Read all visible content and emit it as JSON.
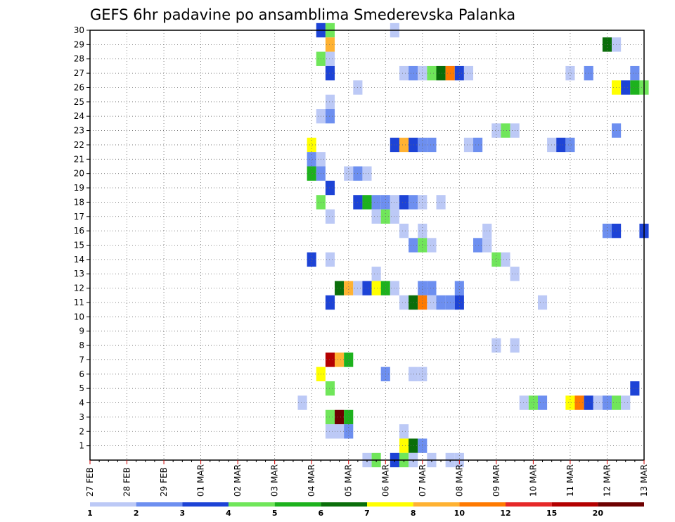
{
  "chart_data": {
    "type": "heatmap",
    "title": "GEFS 6hr padavine po ansamblima Smederevska Palanka",
    "xlabel": "",
    "ylabel": "",
    "x_tick_labels": [
      "27 FEB",
      "28 FEB",
      "29 FEB",
      "01 MAR",
      "02 MAR",
      "03 MAR",
      "04 MAR",
      "05 MAR",
      "06 MAR",
      "07 MAR",
      "08 MAR",
      "09 MAR",
      "10 MAR",
      "11 MAR",
      "12 MAR",
      "13 MAR"
    ],
    "x_axis": "days from 27 FEB, 6-hourly steps",
    "xlim": [
      0,
      15
    ],
    "y_tick_labels": [
      "1",
      "2",
      "3",
      "4",
      "5",
      "6",
      "7",
      "8",
      "9",
      "10",
      "11",
      "12",
      "13",
      "14",
      "15",
      "16",
      "17",
      "18",
      "19",
      "20",
      "21",
      "22",
      "23",
      "24",
      "25",
      "26",
      "27",
      "28",
      "29",
      "30"
    ],
    "ylim": [
      0,
      30
    ],
    "grid": true,
    "legend": {
      "placement": "bottom",
      "colors": [
        "#bcc9f6",
        "#6d8ff0",
        "#1d43d6",
        "#70e65a",
        "#1db21d",
        "#0a6e0a",
        "#ffff00",
        "#ffb232",
        "#ff7a00",
        "#e62828",
        "#b40000",
        "#6e0000"
      ],
      "labels": [
        "1",
        "2",
        "3",
        "4",
        "5",
        "6",
        "7",
        "8",
        "10",
        "12",
        "15",
        "20"
      ]
    },
    "cells": [
      {
        "m": 30,
        "t": 6.25,
        "v": 3
      },
      {
        "m": 30,
        "t": 6.5,
        "v": 4
      },
      {
        "m": 30,
        "t": 8.25,
        "v": 1
      },
      {
        "m": 29,
        "t": 6.5,
        "v": 8
      },
      {
        "m": 29,
        "t": 14.0,
        "v": 6
      },
      {
        "m": 29,
        "t": 14.25,
        "v": 1
      },
      {
        "m": 28,
        "t": 6.25,
        "v": 4
      },
      {
        "m": 28,
        "t": 6.5,
        "v": 1
      },
      {
        "m": 27,
        "t": 6.5,
        "v": 3
      },
      {
        "m": 27,
        "t": 8.5,
        "v": 1
      },
      {
        "m": 27,
        "t": 8.75,
        "v": 2
      },
      {
        "m": 27,
        "t": 9.0,
        "v": 1
      },
      {
        "m": 27,
        "t": 9.25,
        "v": 4
      },
      {
        "m": 27,
        "t": 9.5,
        "v": 6
      },
      {
        "m": 27,
        "t": 9.75,
        "v": 10
      },
      {
        "m": 27,
        "t": 10.0,
        "v": 3
      },
      {
        "m": 27,
        "t": 10.25,
        "v": 1
      },
      {
        "m": 27,
        "t": 13.0,
        "v": 1
      },
      {
        "m": 27,
        "t": 13.5,
        "v": 2
      },
      {
        "m": 27,
        "t": 14.75,
        "v": 2
      },
      {
        "m": 26,
        "t": 7.25,
        "v": 1
      },
      {
        "m": 26,
        "t": 14.25,
        "v": 7
      },
      {
        "m": 26,
        "t": 14.5,
        "v": 3
      },
      {
        "m": 26,
        "t": 14.75,
        "v": 5
      },
      {
        "m": 26,
        "t": 15.0,
        "v": 4
      },
      {
        "m": 25,
        "t": 6.5,
        "v": 1
      },
      {
        "m": 24,
        "t": 6.25,
        "v": 1
      },
      {
        "m": 24,
        "t": 6.5,
        "v": 2
      },
      {
        "m": 23,
        "t": 11.0,
        "v": 1
      },
      {
        "m": 23,
        "t": 11.25,
        "v": 4
      },
      {
        "m": 23,
        "t": 11.5,
        "v": 1
      },
      {
        "m": 23,
        "t": 14.25,
        "v": 2
      },
      {
        "m": 22,
        "t": 6.0,
        "v": 7
      },
      {
        "m": 22,
        "t": 8.25,
        "v": 3
      },
      {
        "m": 22,
        "t": 8.5,
        "v": 8
      },
      {
        "m": 22,
        "t": 8.75,
        "v": 3
      },
      {
        "m": 22,
        "t": 9.0,
        "v": 2
      },
      {
        "m": 22,
        "t": 9.25,
        "v": 2
      },
      {
        "m": 22,
        "t": 10.25,
        "v": 1
      },
      {
        "m": 22,
        "t": 10.5,
        "v": 2
      },
      {
        "m": 22,
        "t": 12.5,
        "v": 1
      },
      {
        "m": 22,
        "t": 12.75,
        "v": 3
      },
      {
        "m": 22,
        "t": 13.0,
        "v": 2
      },
      {
        "m": 21,
        "t": 6.0,
        "v": 2
      },
      {
        "m": 21,
        "t": 6.25,
        "v": 1
      },
      {
        "m": 20,
        "t": 6.0,
        "v": 5
      },
      {
        "m": 20,
        "t": 6.25,
        "v": 2
      },
      {
        "m": 20,
        "t": 7.0,
        "v": 1
      },
      {
        "m": 20,
        "t": 7.25,
        "v": 2
      },
      {
        "m": 20,
        "t": 7.5,
        "v": 1
      },
      {
        "m": 19,
        "t": 6.5,
        "v": 3
      },
      {
        "m": 18,
        "t": 6.25,
        "v": 4
      },
      {
        "m": 18,
        "t": 7.25,
        "v": 3
      },
      {
        "m": 18,
        "t": 7.5,
        "v": 5
      },
      {
        "m": 18,
        "t": 7.75,
        "v": 2
      },
      {
        "m": 18,
        "t": 8.0,
        "v": 2
      },
      {
        "m": 18,
        "t": 8.25,
        "v": 1
      },
      {
        "m": 18,
        "t": 8.5,
        "v": 3
      },
      {
        "m": 18,
        "t": 8.75,
        "v": 2
      },
      {
        "m": 18,
        "t": 9.0,
        "v": 1
      },
      {
        "m": 18,
        "t": 9.5,
        "v": 1
      },
      {
        "m": 17,
        "t": 6.5,
        "v": 1
      },
      {
        "m": 17,
        "t": 7.75,
        "v": 1
      },
      {
        "m": 17,
        "t": 8.0,
        "v": 4
      },
      {
        "m": 17,
        "t": 8.25,
        "v": 1
      },
      {
        "m": 16,
        "t": 8.5,
        "v": 1
      },
      {
        "m": 16,
        "t": 9.0,
        "v": 1
      },
      {
        "m": 16,
        "t": 10.75,
        "v": 1
      },
      {
        "m": 16,
        "t": 14.0,
        "v": 2
      },
      {
        "m": 16,
        "t": 14.25,
        "v": 3
      },
      {
        "m": 16,
        "t": 15.0,
        "v": 3
      },
      {
        "m": 15,
        "t": 8.75,
        "v": 2
      },
      {
        "m": 15,
        "t": 9.0,
        "v": 4
      },
      {
        "m": 15,
        "t": 9.25,
        "v": 1
      },
      {
        "m": 15,
        "t": 10.5,
        "v": 2
      },
      {
        "m": 15,
        "t": 10.75,
        "v": 1
      },
      {
        "m": 14,
        "t": 6.0,
        "v": 3
      },
      {
        "m": 14,
        "t": 6.5,
        "v": 1
      },
      {
        "m": 14,
        "t": 11.0,
        "v": 4
      },
      {
        "m": 14,
        "t": 11.25,
        "v": 1
      },
      {
        "m": 13,
        "t": 7.75,
        "v": 1
      },
      {
        "m": 13,
        "t": 11.5,
        "v": 1
      },
      {
        "m": 12,
        "t": 6.75,
        "v": 6
      },
      {
        "m": 12,
        "t": 7.0,
        "v": 8
      },
      {
        "m": 12,
        "t": 7.25,
        "v": 1
      },
      {
        "m": 12,
        "t": 7.5,
        "v": 3
      },
      {
        "m": 12,
        "t": 7.75,
        "v": 7
      },
      {
        "m": 12,
        "t": 8.0,
        "v": 5
      },
      {
        "m": 12,
        "t": 8.25,
        "v": 1
      },
      {
        "m": 12,
        "t": 9.0,
        "v": 2
      },
      {
        "m": 12,
        "t": 9.25,
        "v": 2
      },
      {
        "m": 12,
        "t": 10.0,
        "v": 2
      },
      {
        "m": 11,
        "t": 6.5,
        "v": 3
      },
      {
        "m": 11,
        "t": 8.5,
        "v": 1
      },
      {
        "m": 11,
        "t": 8.75,
        "v": 6
      },
      {
        "m": 11,
        "t": 9.0,
        "v": 10
      },
      {
        "m": 11,
        "t": 9.25,
        "v": 1
      },
      {
        "m": 11,
        "t": 9.5,
        "v": 2
      },
      {
        "m": 11,
        "t": 9.75,
        "v": 2
      },
      {
        "m": 11,
        "t": 10.0,
        "v": 3
      },
      {
        "m": 11,
        "t": 12.25,
        "v": 1
      },
      {
        "m": 8,
        "t": 11.0,
        "v": 1
      },
      {
        "m": 8,
        "t": 11.5,
        "v": 1
      },
      {
        "m": 7,
        "t": 6.5,
        "v": 15
      },
      {
        "m": 7,
        "t": 6.75,
        "v": 8
      },
      {
        "m": 7,
        "t": 7.0,
        "v": 5
      },
      {
        "m": 6,
        "t": 6.25,
        "v": 7
      },
      {
        "m": 6,
        "t": 8.0,
        "v": 2
      },
      {
        "m": 6,
        "t": 8.75,
        "v": 1
      },
      {
        "m": 6,
        "t": 9.0,
        "v": 1
      },
      {
        "m": 5,
        "t": 6.5,
        "v": 4
      },
      {
        "m": 5,
        "t": 14.75,
        "v": 3
      },
      {
        "m": 4,
        "t": 5.75,
        "v": 1
      },
      {
        "m": 4,
        "t": 11.75,
        "v": 1
      },
      {
        "m": 4,
        "t": 12.0,
        "v": 4
      },
      {
        "m": 4,
        "t": 12.25,
        "v": 2
      },
      {
        "m": 4,
        "t": 13.0,
        "v": 7
      },
      {
        "m": 4,
        "t": 13.25,
        "v": 10
      },
      {
        "m": 4,
        "t": 13.5,
        "v": 3
      },
      {
        "m": 4,
        "t": 13.75,
        "v": 1
      },
      {
        "m": 4,
        "t": 14.0,
        "v": 2
      },
      {
        "m": 4,
        "t": 14.25,
        "v": 4
      },
      {
        "m": 4,
        "t": 14.5,
        "v": 1
      },
      {
        "m": 3,
        "t": 6.5,
        "v": 4
      },
      {
        "m": 3,
        "t": 6.75,
        "v": 20
      },
      {
        "m": 3,
        "t": 7.0,
        "v": 5
      },
      {
        "m": 2,
        "t": 6.5,
        "v": 1
      },
      {
        "m": 2,
        "t": 6.75,
        "v": 1
      },
      {
        "m": 2,
        "t": 7.0,
        "v": 2
      },
      {
        "m": 2,
        "t": 8.5,
        "v": 1
      },
      {
        "m": 1,
        "t": 8.5,
        "v": 7
      },
      {
        "m": 1,
        "t": 8.75,
        "v": 6
      },
      {
        "m": 1,
        "t": 9.0,
        "v": 2
      },
      {
        "m": 0,
        "t": 7.5,
        "v": 1
      },
      {
        "m": 0,
        "t": 7.75,
        "v": 4
      },
      {
        "m": 0,
        "t": 8.25,
        "v": 3
      },
      {
        "m": 0,
        "t": 8.5,
        "v": 4
      },
      {
        "m": 0,
        "t": 8.75,
        "v": 1
      },
      {
        "m": 0,
        "t": 9.25,
        "v": 1
      },
      {
        "m": 0,
        "t": 9.75,
        "v": 1
      },
      {
        "m": 0,
        "t": 10.0,
        "v": 1
      }
    ]
  }
}
